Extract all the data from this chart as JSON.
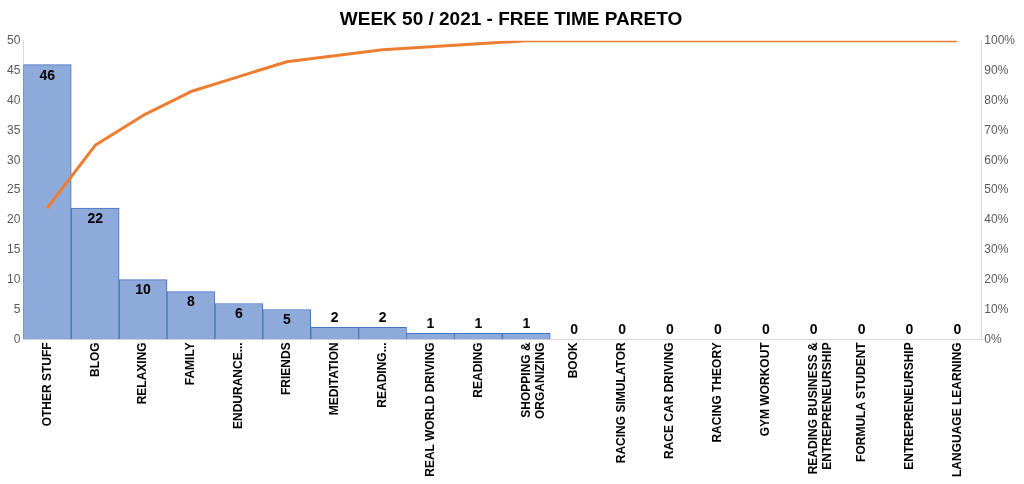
{
  "chart_data": {
    "type": "bar",
    "title": "WEEK 50 / 2021 - FREE TIME PARETO",
    "categories": [
      "OTHER STUFF",
      "BLOG",
      "RELAXING",
      "FAMILY",
      "ENDURANCE...",
      "FRIENDS",
      "MEDITATION",
      "READING...",
      "REAL WORLD DRIVING",
      "READING",
      "SHOPPING &\nORGANIZING",
      "BOOK",
      "RACING SIMULATOR",
      "RACE CAR DRIVING",
      "RACING THEORY",
      "GYM WORKOUT",
      "READING BUSINESS &\nENTREPRENEURSHIP",
      "FORMULA STUDENT",
      "ENTREPRENEURSHIP",
      "LANGUAGE LEARNING"
    ],
    "series": [
      {
        "color": "#8eaadb",
        "values": [
          46,
          22,
          10,
          8,
          6,
          5,
          2,
          2,
          1,
          1,
          1,
          0,
          0,
          0,
          0,
          0,
          0,
          0,
          0,
          0
        ],
        "value_labels": [
          "46",
          "22",
          "10",
          "8",
          "6",
          "5",
          "2",
          "2",
          "1",
          "1",
          "1",
          "0",
          "0",
          "0",
          "0",
          "0",
          "0",
          "0",
          "0",
          "0"
        ]
      },
      {
        "type": "line",
        "axis": "y2",
        "color": "#ed7d31",
        "values": [
          44,
          65,
          75,
          83,
          88,
          93,
          95,
          97,
          98,
          99,
          100,
          100,
          100,
          100,
          100,
          100,
          100,
          100,
          100,
          100
        ]
      }
    ],
    "ylim": [
      0,
      50
    ],
    "yticks": [
      0,
      5,
      10,
      15,
      20,
      25,
      30,
      35,
      40,
      45,
      50
    ],
    "y2lim": [
      0,
      100
    ],
    "y2ticks": [
      {
        "value": 0,
        "label": "0%"
      },
      {
        "value": 10,
        "label": "10%"
      },
      {
        "value": 20,
        "label": "20%"
      },
      {
        "value": 30,
        "label": "30%"
      },
      {
        "value": 40,
        "label": "40%"
      },
      {
        "value": 50,
        "label": "50%"
      },
      {
        "value": 60,
        "label": "60%"
      },
      {
        "value": 70,
        "label": "70%"
      },
      {
        "value": 80,
        "label": "80%"
      },
      {
        "value": 90,
        "label": "90%"
      },
      {
        "value": 100,
        "label": "100%"
      }
    ],
    "marker": "none",
    "legend": false,
    "grid": false
  }
}
